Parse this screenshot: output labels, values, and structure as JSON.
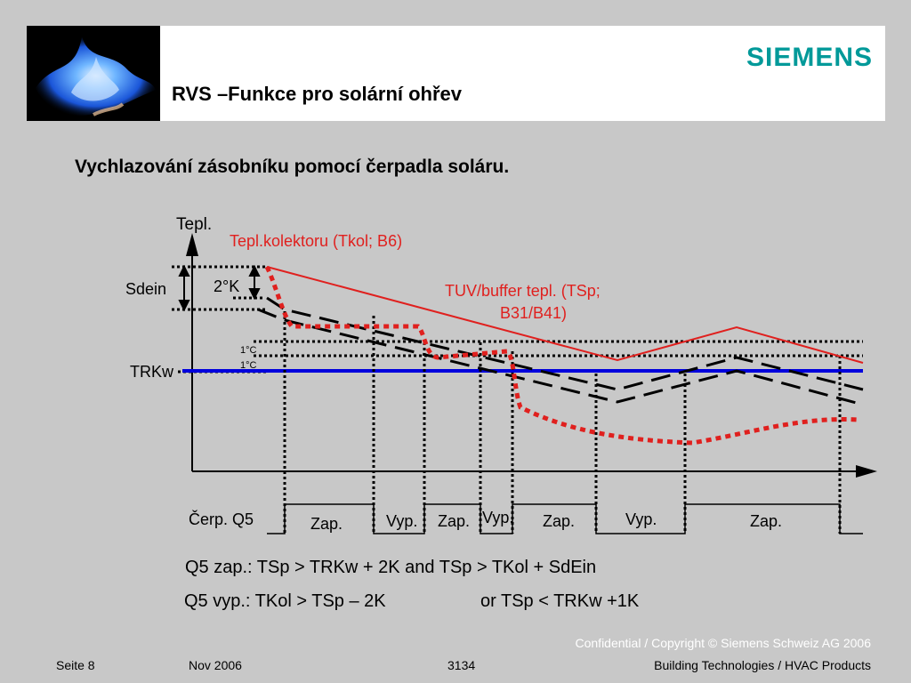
{
  "header": {
    "title": "RVS –Funkce pro solární ohřev",
    "brand": "SIEMENS"
  },
  "subtitle": "Vychlazování zásobníku pomocí čerpadla soláru.",
  "diagram": {
    "y_axis_label": "Tepl.",
    "collector_label": "Tepl.kolektoru (Tkol; B6)",
    "storage_label_line1": "TUV/buffer tepl. (TSp;",
    "storage_label_line2": "B31/B41)",
    "sdein_label": "Sdein",
    "twok_label": "2°K",
    "onec_label_1": "1°C",
    "onec_label_2": "1°C",
    "trkw_label": "TRKw",
    "pump_label": "Čerp. Q5",
    "states": [
      "Zap.",
      "Vyp.",
      "Zap.",
      "Vyp.",
      "Zap.",
      "Vyp.",
      "Zap."
    ],
    "colors": {
      "collector": "#e0201e",
      "trkw": "#0000dd",
      "dashed": "#000000"
    }
  },
  "formulas": {
    "on": "Q5 zap.: TSp > TRKw + 2K and TSp > TKol + SdEin",
    "off_a": "Q5 vyp.: TKol > TSp – 2K",
    "off_b": "or TSp < TRKw +1K"
  },
  "footer": {
    "copyright": "Confidential / Copyright © Siemens Schweiz AG 2006",
    "page": "Seite 8",
    "date": "Nov 2006",
    "number": "3134",
    "org": "Building Technologies / HVAC Products"
  }
}
